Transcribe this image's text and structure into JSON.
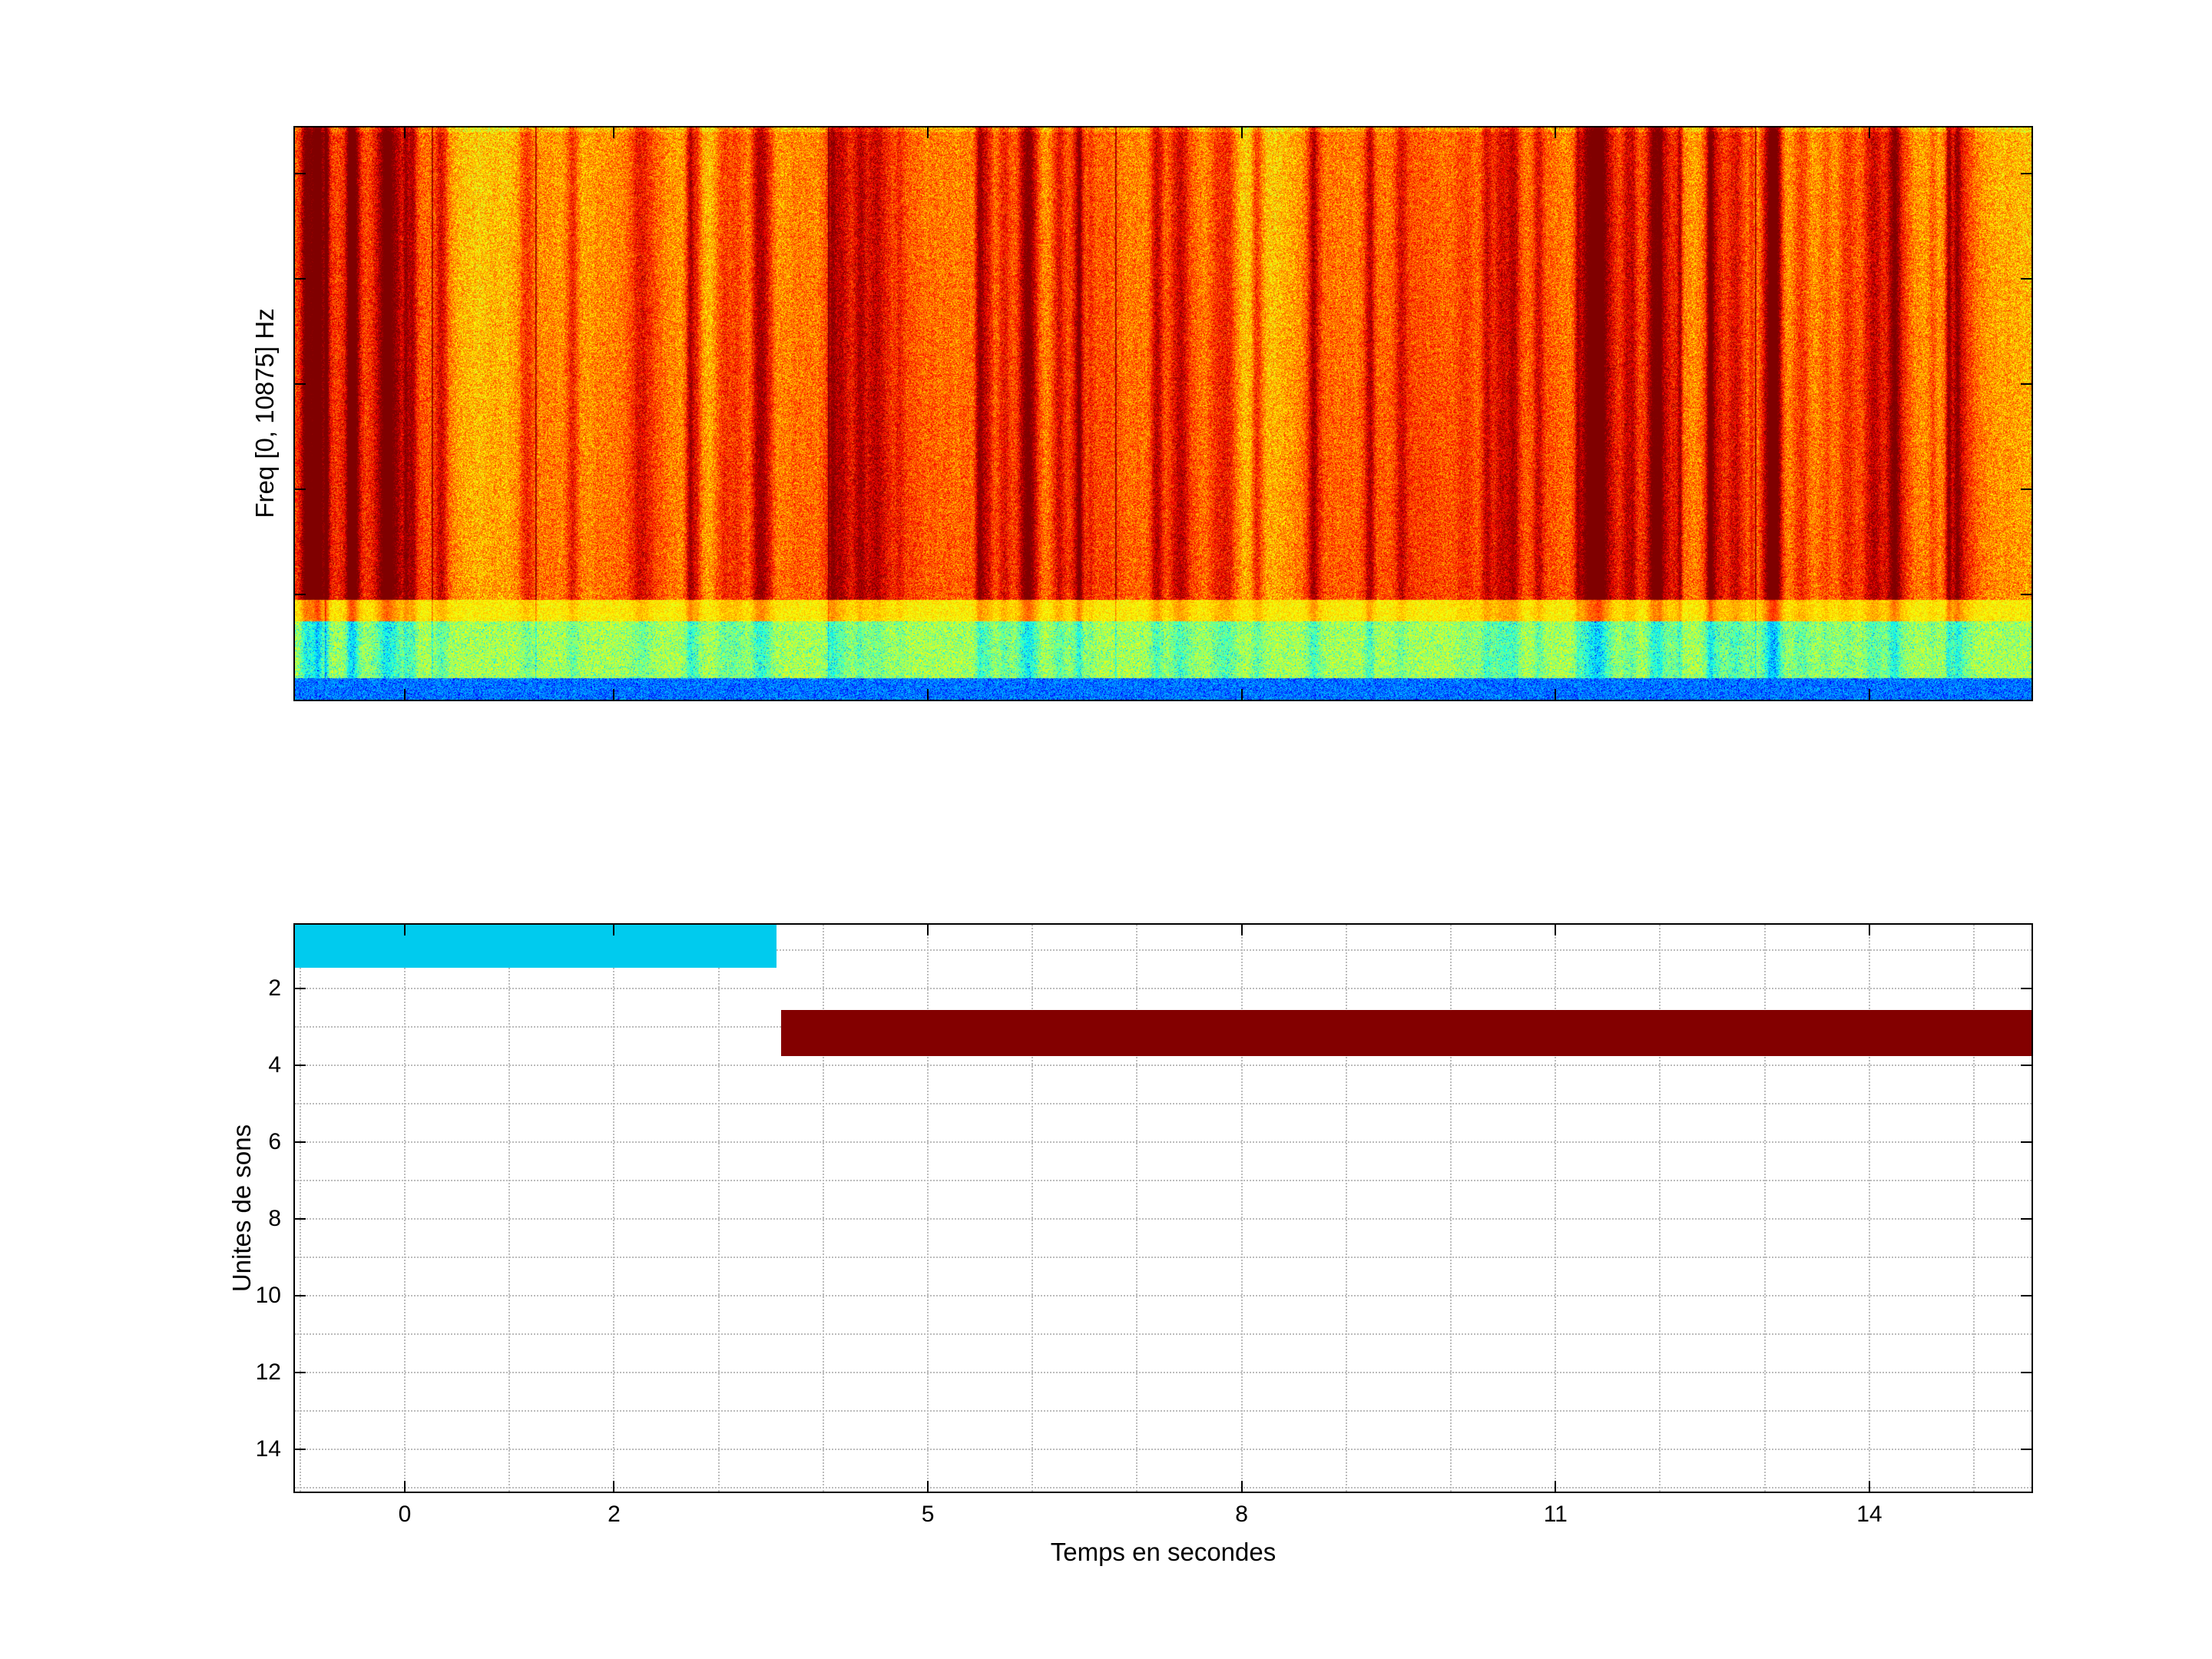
{
  "figure": {
    "background_color": "#ffffff",
    "description": "MATLAB-style figure with a spectrogram (top subplot) and a sound-unit segmentation timeline (bottom subplot)"
  },
  "chart_data": [
    {
      "type": "heatmap",
      "subtype": "spectrogram",
      "ylabel": "Freq [0, 10875] Hz",
      "freq_range_hz": [
        0,
        10875
      ],
      "time_range_s": [
        -1.05,
        15.55
      ],
      "xticks": [
        0,
        2,
        5,
        8,
        11,
        14
      ],
      "freq_tick_marks_hz": [
        2000,
        4000,
        6000,
        8000,
        10000
      ],
      "colormap": "jet",
      "appearance": "Broadband noisy energy: yellow-orange field with dense red vertical striations covering the upper ~82% of the frequency band, a thin yellow transition band, a yellow-green speckled band below it, and a cyan/blue strip at the lowest frequencies",
      "bands_bottom_up": [
        {
          "name": "low-frequency-cyan-strip",
          "height_frac": 0.038,
          "jet_range": [
            0.16,
            0.33
          ]
        },
        {
          "name": "green-speckle-band",
          "height_frac": 0.1,
          "jet_range": [
            0.44,
            0.64
          ]
        },
        {
          "name": "yellow-transition-band",
          "height_frac": 0.037,
          "jet_range": [
            0.58,
            0.7
          ]
        },
        {
          "name": "broadband-orange-red",
          "height_frac": 0.825,
          "jet_range": [
            0.6,
            0.82
          ]
        }
      ]
    },
    {
      "type": "bar",
      "orientation": "horizontal-segments",
      "xlabel": "Temps en secondes",
      "ylabel": "Unites de sons",
      "xlim": [
        -1.05,
        15.55
      ],
      "ylim_top_to_bottom": [
        0.33,
        15.1
      ],
      "xticks": [
        0,
        2,
        5,
        8,
        11,
        14
      ],
      "yticks": [
        2,
        4,
        6,
        8,
        10,
        12,
        14
      ],
      "grid": "dotted-minor",
      "segments": [
        {
          "name": "unit-1-segment",
          "color": "#00cbee",
          "x": [
            -1.05,
            3.55
          ],
          "y_band": [
            0.33,
            1.45
          ]
        },
        {
          "name": "unit-3-segment",
          "color": "#830000",
          "x": [
            3.6,
            15.55
          ],
          "y_band": [
            2.55,
            3.75
          ]
        }
      ]
    }
  ]
}
